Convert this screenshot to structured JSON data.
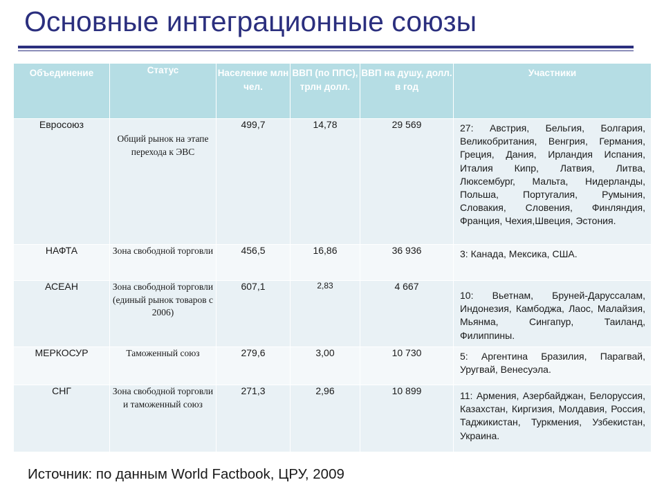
{
  "title": "Основные интеграционные союзы",
  "table": {
    "headers": {
      "union": "Объединение",
      "status": "Статус",
      "population": "Население млн чел.",
      "gdp": "ВВП (по ППС), трлн долл.",
      "gdp_per_capita": "ВВП на душу, долл. в год",
      "members": "Участники"
    },
    "rows": [
      {
        "union": "Евросоюз",
        "status": "Общий рынок на этапе перехода к ЭВС",
        "population": "499,7",
        "gdp": "14,78",
        "gdp_per_capita": "29 569",
        "members": "27: Австрия, Бельгия, Болгария, Великобритания, Венгрия, Германия, Греция, Дания, Ирландия Испания, Италия Кипр, Латвия, Литва, Люксембург, Мальта, Нидерланды, Польша, Португалия, Румыния, Словакия, Словения, Финляндия, Франция, Чехия,Швеция, Эстония."
      },
      {
        "union": "НАФТА",
        "status": "Зона свободной торговли",
        "population": "456,5",
        "gdp": "16,86",
        "gdp_per_capita": "36 936",
        "members": "3: Канада, Мексика, США."
      },
      {
        "union": "АСЕАН",
        "status": "Зона свободной торговли (единый рынок товаров с 2006)",
        "population": "607,1",
        "gdp": "2,83",
        "gdp_per_capita": "4 667",
        "members": "10: Вьетнам, Бруней-Даруссалам, Индонезия, Камбоджа, Лаос, Малайзия, Мьянма, Сингапур, Таиланд, Филиппины."
      },
      {
        "union": "МЕРКОСУР",
        "status": "Таможенный союз",
        "population": "279,6",
        "gdp": "3,00",
        "gdp_per_capita": "10 730",
        "members": "5: Аргентина Бразилия, Парагвай, Уругвай, Венесуэла."
      },
      {
        "union": "СНГ",
        "status": "Зона свободной торговли и таможенный союз",
        "population": "271,3",
        "gdp": "2,96",
        "gdp_per_capita": "10 899",
        "members": "11: Армения, Азербайджан, Белоруссия, Казахстан, Киргизия, Молдавия, Россия, Таджикистан, Туркмения, Узбекистан, Украина."
      }
    ]
  },
  "source": "Источник: по данным World Factbook, ЦРУ, 2009",
  "colors": {
    "title": "#2b2f7e",
    "header_bg": "#b5dde4",
    "row_bg": "#e9f1f5",
    "row_alt_bg": "#f4f8fa"
  }
}
